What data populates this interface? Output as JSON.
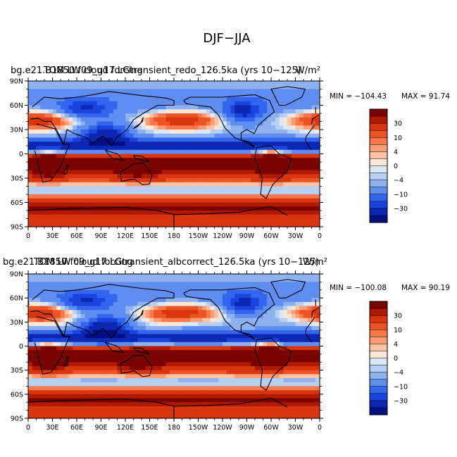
{
  "figure": {
    "main_title": "DJF−JJA"
  },
  "colors": {
    "levels_desc": [
      "#7a0403",
      "#b01a05",
      "#d8360f",
      "#ed5324",
      "#f7784a",
      "#fb9c74",
      "#fcc2a4",
      "#fde8d8",
      "#dbe8f8",
      "#b7cff2",
      "#8eb1f0",
      "#5f8df0",
      "#3266ef",
      "#1a44dd",
      "#0c27b4",
      "#020f84"
    ],
    "land_outline": "#000000"
  },
  "chart_data": [
    {
      "type": "heatmap",
      "title_left": "bg.e21.B1850.f09_g17.LGtransient_redo_126.5ka (yrs 10−125)",
      "title_overlap": "TOM LW cloud forcing",
      "units": "W/m²",
      "min_label": "MIN = −104.43",
      "max_label": "MAX =  91.74",
      "min": -104.43,
      "max": 91.74,
      "lat_ticks": [
        "90N",
        "60N",
        "30N",
        "0",
        "30S",
        "60S",
        "90S"
      ],
      "lon_ticks": [
        "0",
        "30E",
        "60E",
        "90E",
        "120E",
        "150E",
        "180",
        "150W",
        "120W",
        "90W",
        "60W",
        "30W",
        "0"
      ],
      "colorbar_labels": [
        "30",
        "10",
        "4",
        "0",
        "−4",
        "−10",
        "−30"
      ],
      "xlim": [
        0,
        360
      ],
      "ylim": [
        -90,
        90
      ]
    },
    {
      "type": "heatmap",
      "title_left": "bg.e21.B1850.f09_g17.LGtransient_albcorrect_126.5ka (yrs 10−125)",
      "title_overlap": "TOM LW cloud forcing",
      "units": "W/m²",
      "min_label": "MIN = −100.08",
      "max_label": "MAX =  90.19",
      "min": -100.08,
      "max": 90.19,
      "lat_ticks": [
        "90N",
        "60N",
        "30N",
        "0",
        "30S",
        "60S",
        "90S"
      ],
      "lon_ticks": [
        "0",
        "30E",
        "60E",
        "90E",
        "120E",
        "150E",
        "180",
        "150W",
        "120W",
        "90W",
        "60W",
        "30W",
        "0"
      ],
      "colorbar_labels": [
        "30",
        "10",
        "4",
        "0",
        "−4",
        "−10",
        "−30"
      ],
      "xlim": [
        0,
        360
      ],
      "ylim": [
        -90,
        90
      ]
    }
  ]
}
